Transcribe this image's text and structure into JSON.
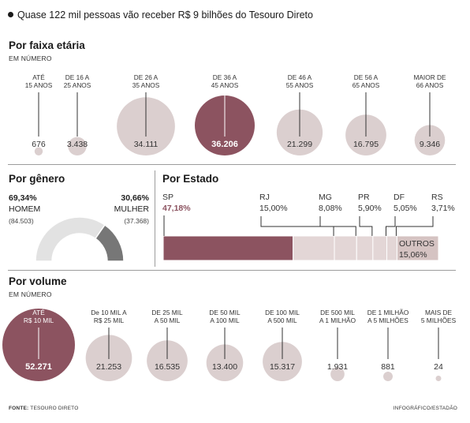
{
  "header": {
    "title": "Quase 122 mil pessoas vão receber R$ 9 bilhões do Tesouro Direto"
  },
  "colors": {
    "highlight": "#8c5360",
    "neutral": "#dbcfcf",
    "gray": "#777777",
    "light_gray": "#e2e2e2",
    "text": "#222222"
  },
  "footer": {
    "source_label": "FONTE:",
    "source": "TESOURO DIRETO",
    "credit": "INFOGRÁFICO/ESTADÃO"
  },
  "chart_data": [
    {
      "id": "age",
      "type": "bubble",
      "title": "Por faixa etária",
      "subtitle": "EM NÚMERO",
      "categories": [
        "ATÉ\n15 ANOS",
        "DE 16 A\n25 ANOS",
        "DE 26 A\n35 ANOS",
        "DE 36 A\n45 ANOS",
        "DE 46 A\n55 ANOS",
        "DE 56 A\n65 ANOS",
        "MAIOR DE\n66 ANOS"
      ],
      "values": [
        676,
        3438,
        34111,
        36206,
        21299,
        16795,
        9346
      ],
      "labels": [
        "676",
        "3.438",
        "34.111",
        "36.206",
        "21.299",
        "16.795",
        "9.346"
      ],
      "highlight_index": 3
    },
    {
      "id": "gender",
      "type": "donut",
      "title": "Por gênero",
      "segments": [
        {
          "name": "HOMEM",
          "percent_label": "69,34%",
          "count_label": "(84.503)",
          "value": 69.34
        },
        {
          "name": "MULHER",
          "percent_label": "30,66%",
          "count_label": "(37.368)",
          "value": 30.66
        }
      ]
    },
    {
      "id": "state",
      "type": "stacked_bar",
      "title": "Por Estado",
      "segments": [
        {
          "name": "SP",
          "label": "47,18%",
          "value": 47.18
        },
        {
          "name": "RJ",
          "label": "15,00%",
          "value": 15.0
        },
        {
          "name": "MG",
          "label": "8,08%",
          "value": 8.08
        },
        {
          "name": "PR",
          "label": "5,90%",
          "value": 5.9
        },
        {
          "name": "DF",
          "label": "5,05%",
          "value": 5.05
        },
        {
          "name": "RS",
          "label": "3,71%",
          "value": 3.71
        },
        {
          "name": "OUTROS",
          "label": "15,06%",
          "value": 15.06
        }
      ]
    },
    {
      "id": "volume",
      "type": "bubble",
      "title": "Por volume",
      "subtitle": "EM NÚMERO",
      "categories": [
        "ATÉ\nR$ 10 MIL",
        "De 10 MIL A\nR$ 25 MIL",
        "DE 25 MIL\nA 50 MIL",
        "DE 50 MIL\nA 100 MIL",
        "DE 100 MIL\nA 500 MIL",
        "DE 500 MIL\nA 1 MILHÃO",
        "DE 1 MILHÃO\nA 5 MILHÕES",
        "MAIS DE\n5 MILHÕES"
      ],
      "values": [
        52271,
        21253,
        16535,
        13400,
        15317,
        1931,
        881,
        24
      ],
      "labels": [
        "52.271",
        "21.253",
        "16.535",
        "13.400",
        "15.317",
        "1.931",
        "881",
        "24"
      ],
      "highlight_index": 0
    }
  ]
}
